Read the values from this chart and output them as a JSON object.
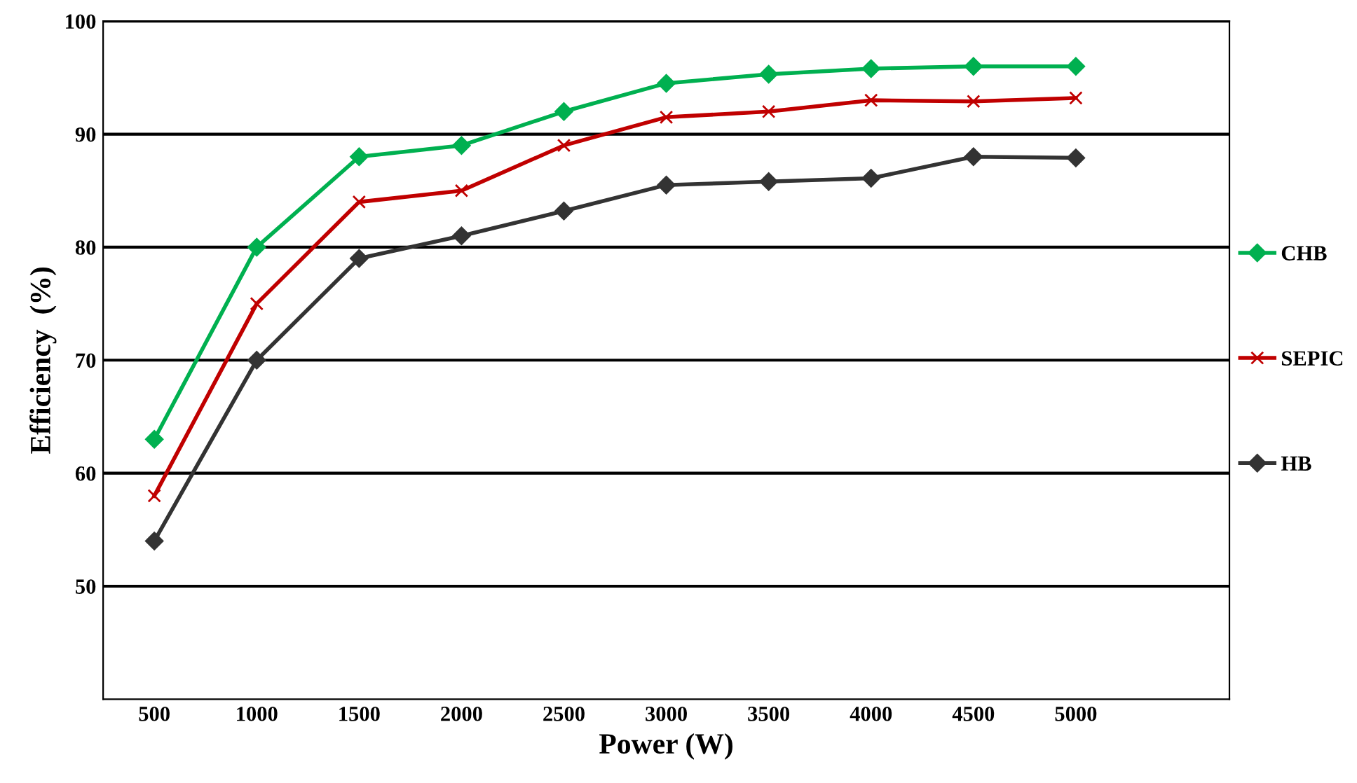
{
  "chart_data": {
    "type": "line",
    "xlabel": "Power (W)",
    "ylabel": "Efficiency  (%)",
    "x": [
      500,
      1000,
      1500,
      2000,
      2500,
      3000,
      3500,
      4000,
      4500,
      5000
    ],
    "xlim": [
      250,
      5750
    ],
    "xticks": [
      500,
      1000,
      1500,
      2000,
      2500,
      3000,
      3500,
      4000,
      4500,
      5000
    ],
    "ylim": [
      40,
      100
    ],
    "yticks": [
      50,
      60,
      70,
      80,
      90,
      100
    ],
    "grid": "y",
    "legend": "right",
    "line_style": "solid",
    "series": [
      {
        "name": "CHB",
        "color": "#00b050",
        "marker": "diamond",
        "values": [
          63,
          80,
          88,
          89,
          92,
          94.5,
          95.3,
          95.8,
          96,
          96
        ]
      },
      {
        "name": "SEPIC",
        "color": "#c00000",
        "marker": "cross",
        "values": [
          58,
          75,
          84,
          85,
          89,
          91.5,
          92,
          93,
          92.9,
          93.2
        ]
      },
      {
        "name": "HB",
        "color": "#333333",
        "marker": "diamond",
        "values": [
          54,
          70,
          79,
          81,
          83.2,
          85.5,
          85.8,
          86.1,
          88,
          87.9
        ]
      }
    ]
  }
}
